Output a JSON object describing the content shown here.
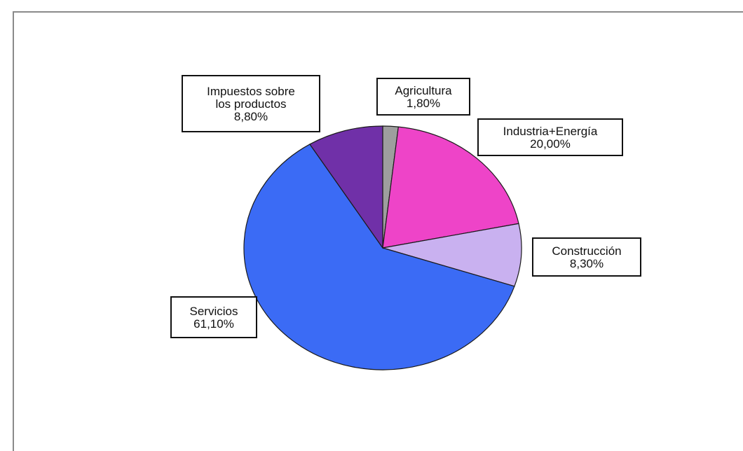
{
  "chart_data": {
    "type": "pie",
    "title": "",
    "slices": [
      {
        "category": "Agricultura",
        "value": 1.8,
        "label": "1,80%",
        "color": "#9e9e9e"
      },
      {
        "category": "Industria+Energía",
        "value": 20.0,
        "label": "20,00%",
        "color": "#ee44c8"
      },
      {
        "category": "Construcción",
        "value": 8.3,
        "label": "8,30%",
        "color": "#c9b1f0"
      },
      {
        "category": "Servicios",
        "value": 61.1,
        "label": "61,10%",
        "color": "#3b6bf5"
      },
      {
        "category": "Impuestos sobre los productos",
        "value": 8.8,
        "label": "8,80%",
        "color": "#7030a8"
      }
    ],
    "category_display_lines": [
      [
        "Agricultura"
      ],
      [
        "Industria+Energía"
      ],
      [
        "Construcción"
      ],
      [
        "Servicios"
      ],
      [
        "Impuestos sobre",
        "los productos"
      ]
    ],
    "start_angle": "top, clockwise",
    "legend": "none (callout labels)"
  }
}
